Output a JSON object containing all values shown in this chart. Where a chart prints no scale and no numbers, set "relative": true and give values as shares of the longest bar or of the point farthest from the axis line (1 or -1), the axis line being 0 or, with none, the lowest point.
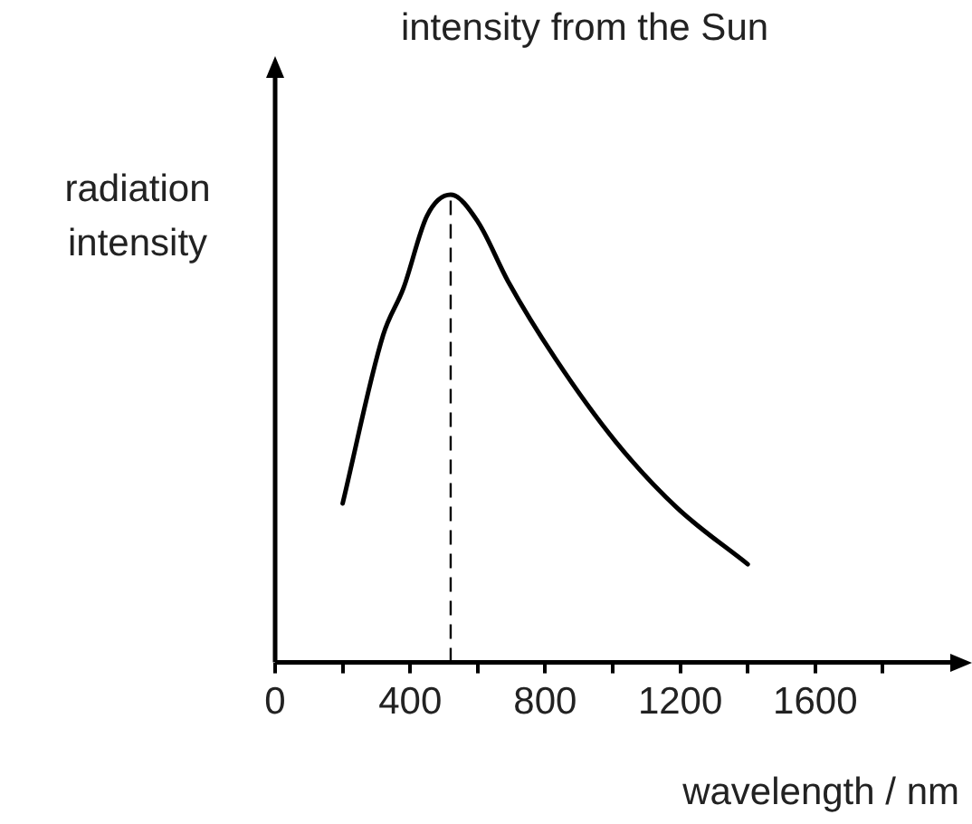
{
  "chart_data": {
    "type": "line",
    "title": "intensity from the Sun",
    "ylabel": "radiation intensity",
    "xlabel": "wavelength / nm",
    "relative": true,
    "series": [
      {
        "color": "#000000",
        "x": [
          200,
          320,
          380,
          450,
          520,
          600,
          690,
          830,
          1010,
          1190,
          1400
        ],
        "values": [
          0.34,
          0.7,
          0.8,
          0.955,
          1,
          0.943,
          0.815,
          0.65,
          0.471,
          0.331,
          0.21
        ]
      }
    ],
    "xlim": [
      0,
      2000
    ],
    "xticks": [
      0,
      {
        "value": 200,
        "label": null
      },
      400,
      {
        "value": 600,
        "label": null
      },
      800,
      {
        "value": 1000,
        "label": null
      },
      1200,
      {
        "value": 1400,
        "label": null
      },
      1600,
      {
        "value": 1800,
        "label": null
      }
    ],
    "ref_lines": [
      {
        "axis": "x",
        "value": 520,
        "line_style": "dashed"
      }
    ],
    "grid": false,
    "legend": false,
    "marker": "none",
    "line_style": "solid"
  }
}
